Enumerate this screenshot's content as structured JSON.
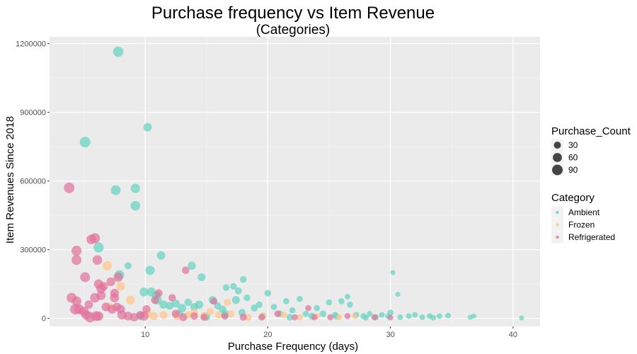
{
  "chart_data": {
    "type": "scatter",
    "title": "Purchase frequency vs Item Revenue",
    "subtitle": "(Categories)",
    "xlabel": "Purchase Frequency (days)",
    "ylabel": "Item Revenues Since 2018",
    "xlim": [
      2.2,
      42.2
    ],
    "ylim": [
      -35000,
      1230000
    ],
    "x_ticks": [
      10,
      20,
      30,
      40
    ],
    "y_ticks": [
      0,
      300000,
      600000,
      900000,
      1200000
    ],
    "grid": true,
    "legend_placement": "right",
    "size_legend": {
      "title": "Purchase_Count",
      "entries": [
        {
          "label": "30",
          "value": 30
        },
        {
          "label": "60",
          "value": 60
        },
        {
          "label": "90",
          "value": 90
        }
      ]
    },
    "color_legend": {
      "title": "Category",
      "entries": [
        {
          "label": "Ambient",
          "color": "#66D2C2"
        },
        {
          "label": "Frozen",
          "color": "#FFC68A"
        },
        {
          "label": "Refrigerated",
          "color": "#E1739B"
        }
      ]
    },
    "series": [
      {
        "category": "Ambient",
        "color": "#66D2C2",
        "points": [
          [
            7.8,
            1165000,
            85
          ],
          [
            5.1,
            770000,
            90
          ],
          [
            10.2,
            835000,
            50
          ],
          [
            7.6,
            560000,
            75
          ],
          [
            9.2,
            568000,
            65
          ],
          [
            9.2,
            492000,
            70
          ],
          [
            6.2,
            310000,
            80
          ],
          [
            11.3,
            275000,
            50
          ],
          [
            7.9,
            190000,
            70
          ],
          [
            10.4,
            210000,
            65
          ],
          [
            13.8,
            230000,
            45
          ],
          [
            14.6,
            180000,
            40
          ],
          [
            8.6,
            230000,
            30
          ],
          [
            9.9,
            115000,
            55
          ],
          [
            10.5,
            115000,
            60
          ],
          [
            10.9,
            100000,
            50
          ],
          [
            11.0,
            80000,
            55
          ],
          [
            11.5,
            60000,
            45
          ],
          [
            12.0,
            55000,
            40
          ],
          [
            12.5,
            65000,
            40
          ],
          [
            13.0,
            45000,
            50
          ],
          [
            13.5,
            70000,
            35
          ],
          [
            14.0,
            50000,
            40
          ],
          [
            14.4,
            60000,
            45
          ],
          [
            15.5,
            80000,
            40
          ],
          [
            15.9,
            55000,
            30
          ],
          [
            16.3,
            40000,
            35
          ],
          [
            16.6,
            135000,
            25
          ],
          [
            17.2,
            140000,
            25
          ],
          [
            17.6,
            120000,
            30
          ],
          [
            18.0,
            170000,
            25
          ],
          [
            17.4,
            80000,
            40
          ],
          [
            16.5,
            20000,
            45
          ],
          [
            18.3,
            90000,
            25
          ],
          [
            18.9,
            45000,
            30
          ],
          [
            19.3,
            60000,
            25
          ],
          [
            19.6,
            10000,
            30
          ],
          [
            20.0,
            110000,
            25
          ],
          [
            20.5,
            50000,
            20
          ],
          [
            21.0,
            20000,
            25
          ],
          [
            21.5,
            75000,
            20
          ],
          [
            22.0,
            35000,
            20
          ],
          [
            22.6,
            85000,
            20
          ],
          [
            23.1,
            20000,
            20
          ],
          [
            23.6,
            10000,
            30
          ],
          [
            24.0,
            45000,
            20
          ],
          [
            24.5,
            20000,
            25
          ],
          [
            25.0,
            70000,
            20
          ],
          [
            25.5,
            15000,
            20
          ],
          [
            26.0,
            75000,
            20
          ],
          [
            26.5,
            95000,
            15
          ],
          [
            26.7,
            60000,
            20
          ],
          [
            27.2,
            15000,
            20
          ],
          [
            27.8,
            10000,
            20
          ],
          [
            28.3,
            20000,
            15
          ],
          [
            28.8,
            5000,
            20
          ],
          [
            29.3,
            15000,
            15
          ],
          [
            29.8,
            10000,
            15
          ],
          [
            30.2,
            200000,
            10
          ],
          [
            30.6,
            105000,
            10
          ],
          [
            30.0,
            25000,
            20
          ],
          [
            30.8,
            5000,
            15
          ],
          [
            31.5,
            10000,
            15
          ],
          [
            32.0,
            15000,
            15
          ],
          [
            32.6,
            5000,
            15
          ],
          [
            33.2,
            10000,
            15
          ],
          [
            34.0,
            10000,
            15
          ],
          [
            34.7,
            12000,
            15
          ],
          [
            36.5,
            5000,
            10
          ],
          [
            36.8,
            10000,
            10
          ],
          [
            40.7,
            2000,
            10
          ],
          [
            14.9,
            10000,
            35
          ],
          [
            17.9,
            25000,
            35
          ],
          [
            12.8,
            20000,
            35
          ],
          [
            9.6,
            10000,
            40
          ],
          [
            15.0,
            5000,
            30
          ],
          [
            21.8,
            5000,
            25
          ],
          [
            25.6,
            8000,
            20
          ],
          [
            28.0,
            3000,
            15
          ],
          [
            33.5,
            3000,
            15
          ]
        ]
      },
      {
        "category": "Frozen",
        "color": "#FFC68A",
        "points": [
          [
            6.9,
            230000,
            65
          ],
          [
            8.0,
            140000,
            55
          ],
          [
            8.8,
            80000,
            55
          ],
          [
            7.1,
            50000,
            45
          ],
          [
            10.2,
            20000,
            50
          ],
          [
            10.7,
            10000,
            50
          ],
          [
            11.5,
            15000,
            40
          ],
          [
            12.6,
            10000,
            40
          ],
          [
            13.5,
            15000,
            35
          ],
          [
            14.0,
            25000,
            40
          ],
          [
            14.8,
            10000,
            40
          ],
          [
            15.3,
            30000,
            35
          ],
          [
            16.0,
            15000,
            35
          ],
          [
            16.7,
            70000,
            30
          ],
          [
            17.0,
            20000,
            30
          ],
          [
            18.4,
            5000,
            30
          ],
          [
            19.6,
            10000,
            25
          ],
          [
            21.3,
            15000,
            25
          ],
          [
            22.6,
            5000,
            20
          ],
          [
            24.0,
            10000,
            20
          ],
          [
            25.8,
            5000,
            20
          ],
          [
            27.1,
            10000,
            15
          ]
        ]
      },
      {
        "category": "Refrigerated",
        "color": "#E1739B",
        "points": [
          [
            3.8,
            570000,
            90
          ],
          [
            5.9,
            350000,
            80
          ],
          [
            5.6,
            345000,
            70
          ],
          [
            4.4,
            295000,
            80
          ],
          [
            4.4,
            255000,
            75
          ],
          [
            6.1,
            255000,
            70
          ],
          [
            5.1,
            180000,
            75
          ],
          [
            6.2,
            150000,
            65
          ],
          [
            4.0,
            90000,
            75
          ],
          [
            4.4,
            75000,
            70
          ],
          [
            4.3,
            40000,
            85
          ],
          [
            4.6,
            40000,
            75
          ],
          [
            5.0,
            30000,
            70
          ],
          [
            5.2,
            15000,
            65
          ],
          [
            5.5,
            5000,
            85
          ],
          [
            6.0,
            10000,
            75
          ],
          [
            6.2,
            10000,
            65
          ],
          [
            5.9,
            90000,
            70
          ],
          [
            6.4,
            130000,
            65
          ],
          [
            6.4,
            100000,
            60
          ],
          [
            6.8,
            50000,
            55
          ],
          [
            7.3,
            40000,
            60
          ],
          [
            7.5,
            90000,
            60
          ],
          [
            7.5,
            110000,
            55
          ],
          [
            7.8,
            180000,
            65
          ],
          [
            7.2,
            160000,
            55
          ],
          [
            7.7,
            50000,
            50
          ],
          [
            8.1,
            15000,
            60
          ],
          [
            8.6,
            10000,
            55
          ],
          [
            9.1,
            5000,
            50
          ],
          [
            9.6,
            15000,
            45
          ],
          [
            10.1,
            40000,
            45
          ],
          [
            10.8,
            80000,
            40
          ],
          [
            11.1,
            110000,
            40
          ],
          [
            12.2,
            90000,
            35
          ],
          [
            12.5,
            20000,
            45
          ],
          [
            13.3,
            210000,
            35
          ],
          [
            13.1,
            5000,
            40
          ],
          [
            14.0,
            10000,
            35
          ],
          [
            14.8,
            5000,
            30
          ],
          [
            15.6,
            75000,
            30
          ],
          [
            16.5,
            10000,
            30
          ],
          [
            18.0,
            5000,
            30
          ],
          [
            19.5,
            5000,
            25
          ],
          [
            20.8,
            20000,
            25
          ],
          [
            22.2,
            5000,
            20
          ],
          [
            23.3,
            45000,
            20
          ],
          [
            23.8,
            5000,
            20
          ],
          [
            25.1,
            5000,
            20
          ],
          [
            26.5,
            10000,
            20
          ],
          [
            28.7,
            5000,
            20
          ],
          [
            30.0,
            3000,
            15
          ],
          [
            5.4,
            60000,
            50
          ],
          [
            6.6,
            140000,
            55
          ],
          [
            8.0,
            40000,
            55
          ],
          [
            9.9,
            10000,
            60
          ]
        ]
      }
    ]
  }
}
